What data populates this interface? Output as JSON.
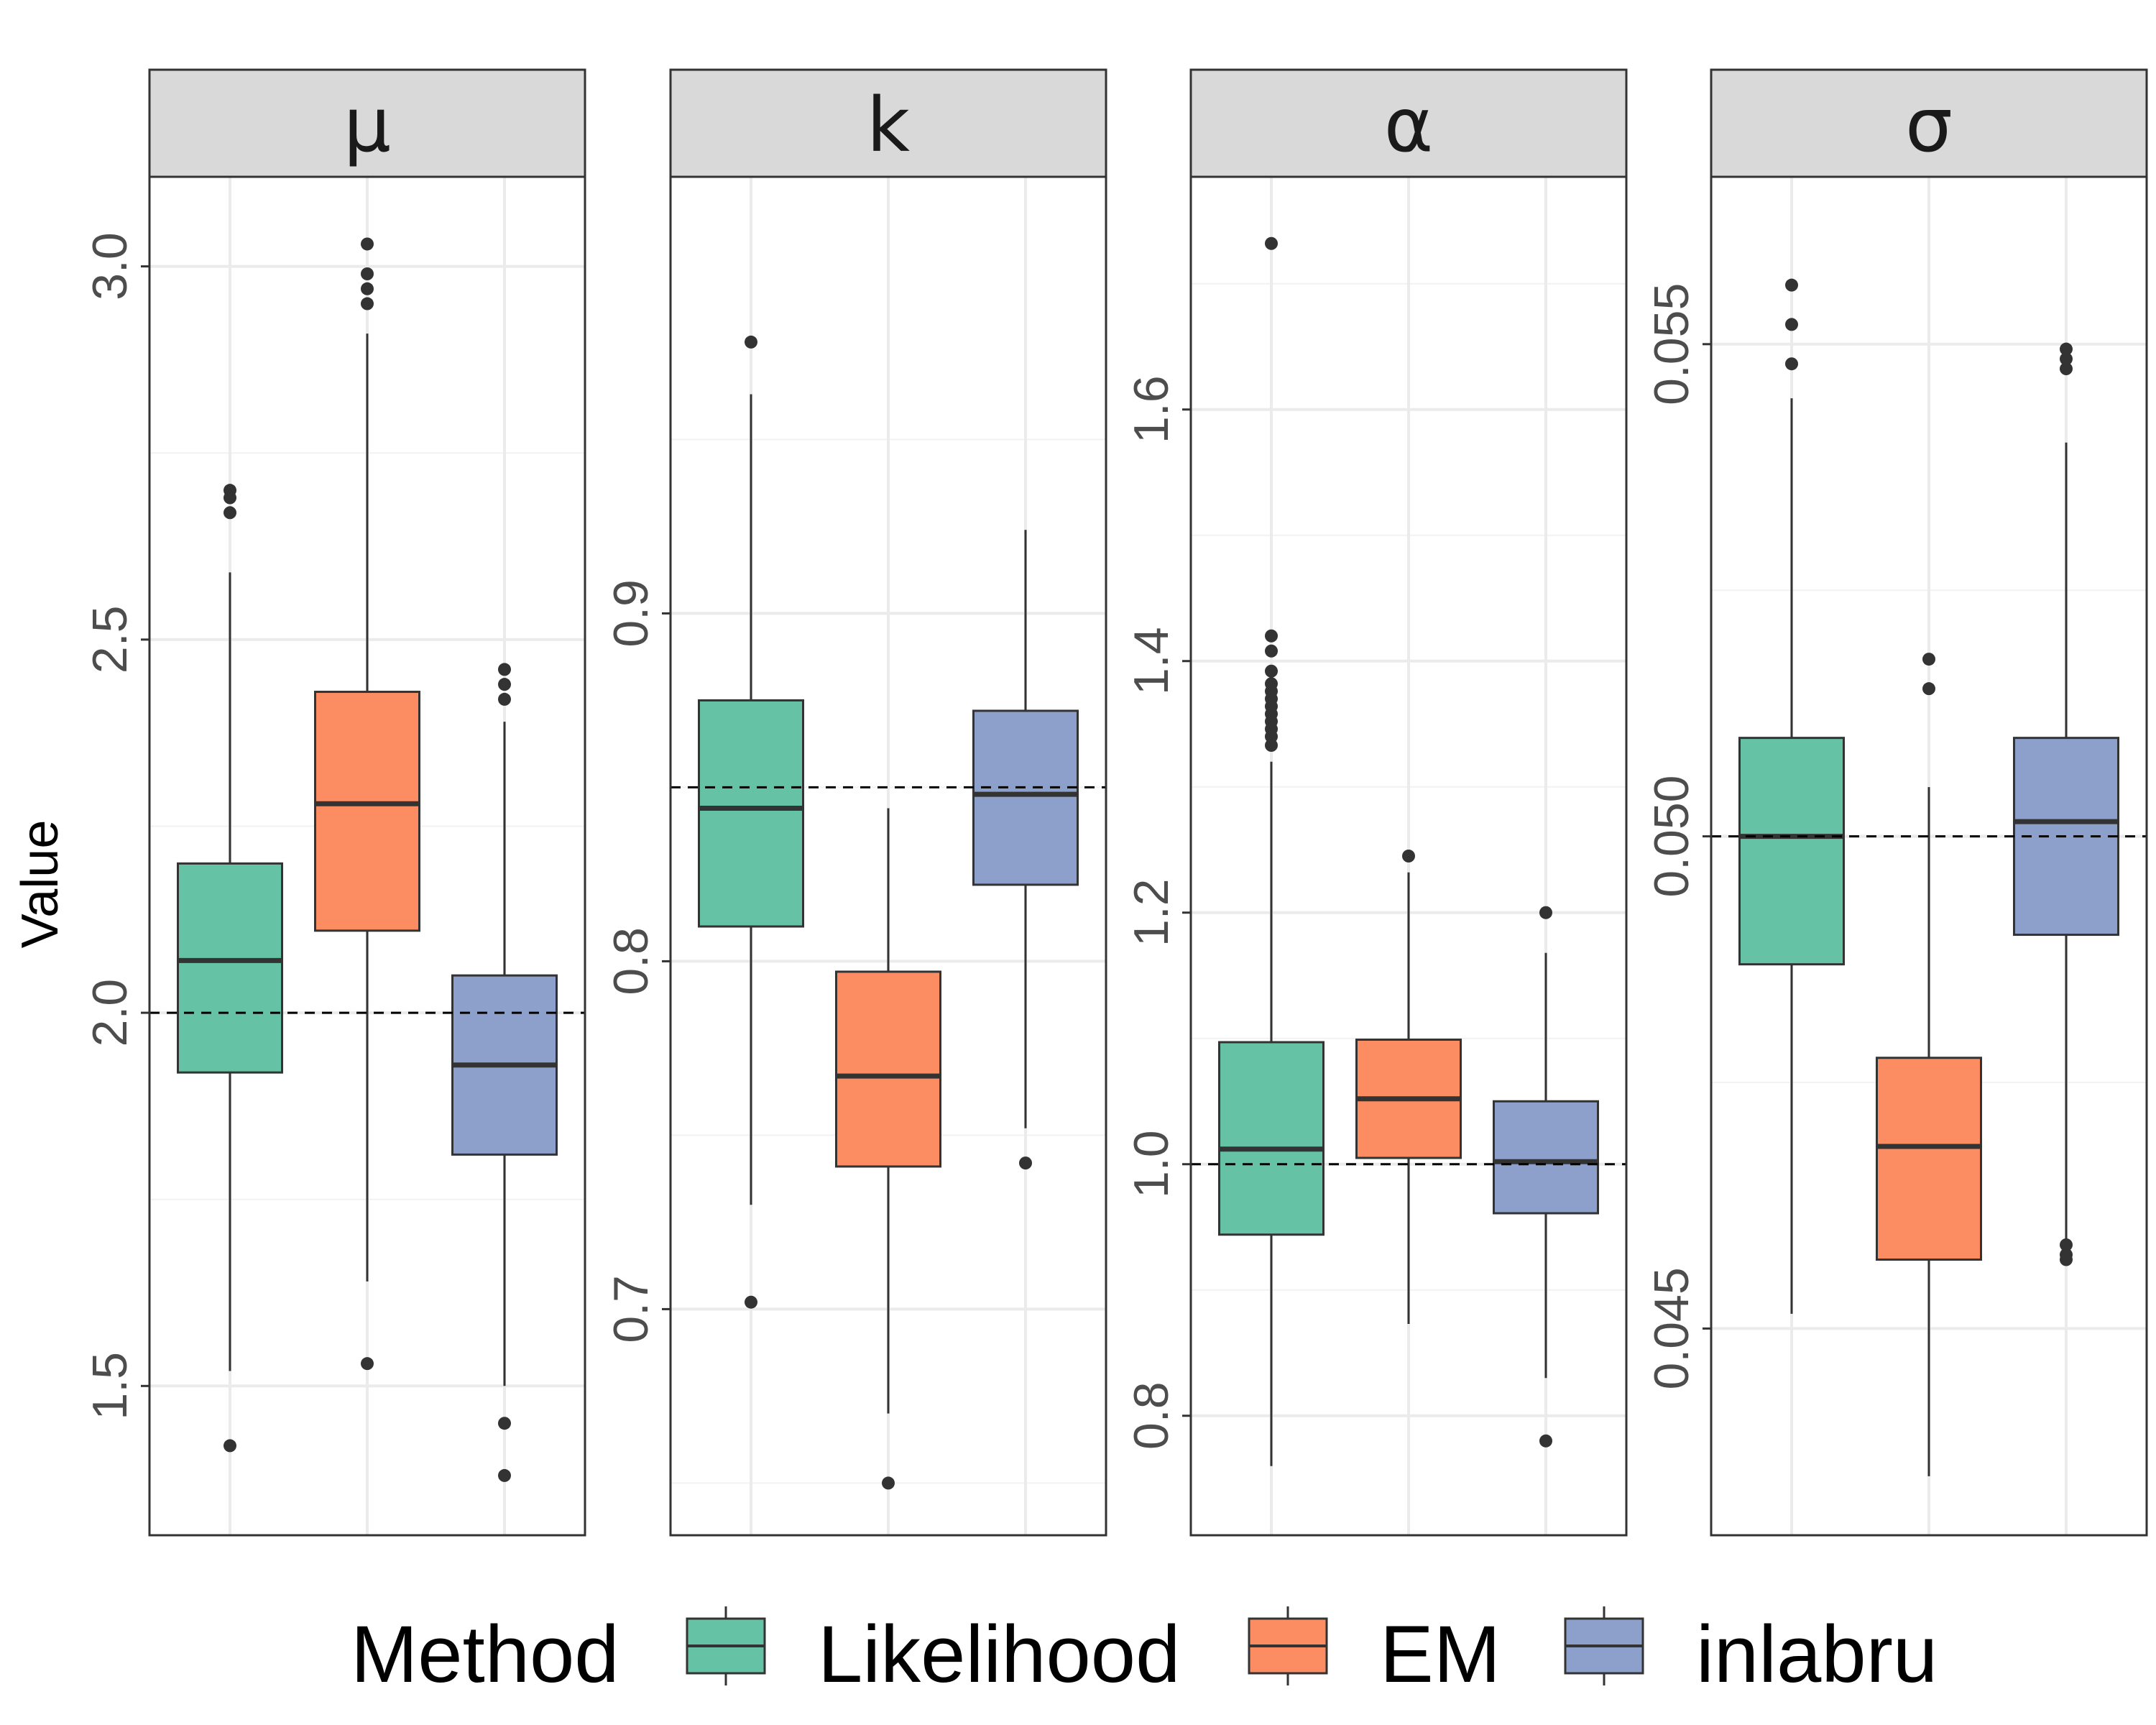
{
  "chart_data": {
    "type": "box",
    "ylabel": "Value",
    "legend": {
      "title": "Method",
      "position": "bottom",
      "entries": [
        "Likelihood",
        "EM",
        "inlabru"
      ]
    },
    "colors": {
      "Likelihood": "#66C2A5",
      "EM": "#FC8D62",
      "inlabru": "#8DA0CB"
    },
    "grid": true,
    "panels": [
      {
        "label": "μ",
        "ylim": [
          1.3,
          3.12
        ],
        "ticks": [
          1.5,
          2.0,
          2.5,
          3.0
        ],
        "tick_labels": [
          "1.5",
          "2.0",
          "2.5",
          "3.0"
        ],
        "reference": 2.0,
        "boxes": [
          {
            "method": "Likelihood",
            "whisker_low": 1.52,
            "q1": 1.92,
            "median": 2.07,
            "q3": 2.2,
            "whisker_high": 2.59,
            "outliers": [
              2.67,
              2.69,
              2.7,
              1.42
            ]
          },
          {
            "method": "EM",
            "whisker_low": 1.64,
            "q1": 2.11,
            "median": 2.28,
            "q3": 2.43,
            "whisker_high": 2.91,
            "outliers": [
              2.95,
              2.97,
              2.99,
              3.03,
              1.53
            ]
          },
          {
            "method": "inlabru",
            "whisker_low": 1.5,
            "q1": 1.81,
            "median": 1.93,
            "q3": 2.05,
            "whisker_high": 2.39,
            "outliers": [
              2.42,
              2.44,
              2.46,
              1.45,
              1.38
            ]
          }
        ]
      },
      {
        "label": "k",
        "ylim": [
          0.635,
          1.0255
        ],
        "ticks": [
          0.7,
          0.8,
          0.9
        ],
        "tick_labels": [
          "0.7",
          "0.8",
          "0.9"
        ],
        "reference": 0.85,
        "boxes": [
          {
            "method": "Likelihood",
            "whisker_low": 0.73,
            "q1": 0.81,
            "median": 0.844,
            "q3": 0.875,
            "whisker_high": 0.963,
            "outliers": [
              0.978,
              0.702
            ]
          },
          {
            "method": "EM",
            "whisker_low": 0.67,
            "q1": 0.741,
            "median": 0.767,
            "q3": 0.797,
            "whisker_high": 0.844,
            "outliers": [
              0.65
            ]
          },
          {
            "method": "inlabru",
            "whisker_low": 0.752,
            "q1": 0.822,
            "median": 0.848,
            "q3": 0.872,
            "whisker_high": 0.924,
            "outliers": [
              0.742
            ]
          }
        ]
      },
      {
        "label": "α",
        "ylim": [
          0.705,
          1.785
        ],
        "ticks": [
          0.8,
          1.0,
          1.2,
          1.4,
          1.6
        ],
        "tick_labels": [
          "0.8",
          "1.0",
          "1.2",
          "1.4",
          "1.6"
        ],
        "reference": 1.0,
        "boxes": [
          {
            "method": "Likelihood",
            "whisker_low": 0.76,
            "q1": 0.944,
            "median": 1.012,
            "q3": 1.097,
            "whisker_high": 1.32,
            "outliers": [
              1.333,
              1.34,
              1.346,
              1.352,
              1.358,
              1.364,
              1.37,
              1.376,
              1.382,
              1.392,
              1.408,
              1.42,
              1.732
            ]
          },
          {
            "method": "EM",
            "whisker_low": 0.873,
            "q1": 1.005,
            "median": 1.052,
            "q3": 1.099,
            "whisker_high": 1.232,
            "outliers": [
              1.245
            ]
          },
          {
            "method": "inlabru",
            "whisker_low": 0.83,
            "q1": 0.961,
            "median": 1.002,
            "q3": 1.05,
            "whisker_high": 1.168,
            "outliers": [
              1.2,
              0.78
            ]
          }
        ]
      },
      {
        "label": "σ",
        "ylim": [
          0.0429,
          0.0567
        ],
        "ticks": [
          0.045,
          0.05,
          0.055
        ],
        "tick_labels": [
          "0.045",
          "0.050",
          "0.055"
        ],
        "reference": 0.05,
        "boxes": [
          {
            "method": "Likelihood",
            "whisker_low": 0.04515,
            "q1": 0.0487,
            "median": 0.05,
            "q3": 0.051,
            "whisker_high": 0.05445,
            "outliers": [
              0.0548,
              0.0552,
              0.0556
            ]
          },
          {
            "method": "EM",
            "whisker_low": 0.0435,
            "q1": 0.0457,
            "median": 0.04685,
            "q3": 0.04775,
            "whisker_high": 0.0505,
            "outliers": [
              0.0515,
              0.0518
            ]
          },
          {
            "method": "inlabru",
            "whisker_low": 0.0459,
            "q1": 0.049,
            "median": 0.05015,
            "q3": 0.051,
            "whisker_high": 0.054,
            "outliers": [
              0.0457,
              0.04575,
              0.04585,
              0.05475,
              0.05485,
              0.05495
            ]
          }
        ]
      }
    ]
  }
}
